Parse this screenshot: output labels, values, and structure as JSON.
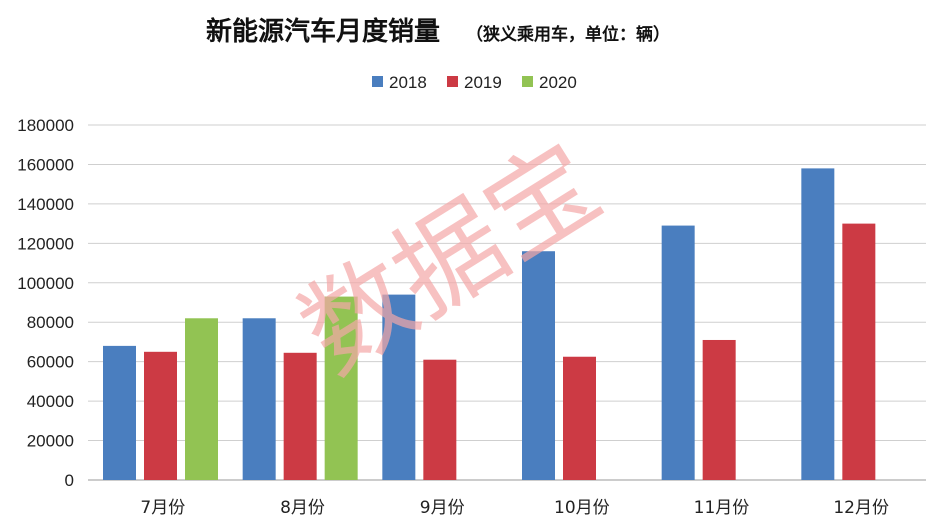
{
  "chart_data": {
    "type": "bar",
    "title": "新能源汽车月度销量",
    "subtitle": "（狭义乘用车，单位：辆）",
    "xlabel": "",
    "ylabel": "",
    "ylim": [
      0,
      180000
    ],
    "ytick_step": 20000,
    "yticks": [
      "0",
      "20000",
      "40000",
      "60000",
      "80000",
      "100000",
      "120000",
      "140000",
      "160000",
      "180000"
    ],
    "grid": true,
    "legend_position": "top-center",
    "categories": [
      "7月份",
      "8月份",
      "9月份",
      "10月份",
      "11月份",
      "12月份"
    ],
    "series": [
      {
        "name": "2018",
        "color": "#4a7ebf",
        "values": [
          68000,
          82000,
          94000,
          116000,
          129000,
          158000
        ]
      },
      {
        "name": "2019",
        "color": "#cc3a44",
        "values": [
          65000,
          64500,
          61000,
          62500,
          71000,
          130000
        ]
      },
      {
        "name": "2020",
        "color": "#92c353",
        "values": [
          82000,
          93000,
          null,
          null,
          null,
          null
        ]
      }
    ],
    "watermark": "数据宝"
  }
}
